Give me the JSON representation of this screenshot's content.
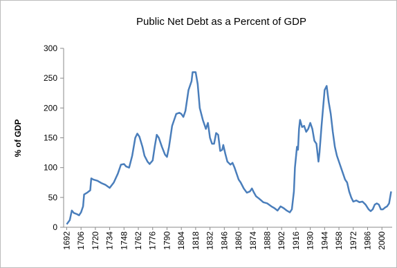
{
  "chart_data": {
    "type": "line",
    "title": "Public Net Debt as a Percent of GDP",
    "y_label": "% of GDP",
    "x": [
      1692,
      1695,
      1697,
      1699,
      1702,
      1704,
      1706,
      1708,
      1709,
      1712,
      1715,
      1716,
      1718,
      1722,
      1726,
      1730,
      1734,
      1738,
      1742,
      1745,
      1748,
      1750,
      1753,
      1756,
      1759,
      1761,
      1763,
      1766,
      1768,
      1771,
      1773,
      1776,
      1778,
      1780,
      1782,
      1785,
      1788,
      1790,
      1792,
      1795,
      1797,
      1799,
      1802,
      1804,
      1806,
      1808,
      1811,
      1814,
      1815,
      1818,
      1820,
      1822,
      1825,
      1828,
      1830,
      1832,
      1834,
      1836,
      1838,
      1840,
      1842,
      1844,
      1845,
      1847,
      1849,
      1852,
      1854,
      1856,
      1858,
      1860,
      1862,
      1865,
      1868,
      1871,
      1873,
      1875,
      1877,
      1880,
      1884,
      1888,
      1892,
      1895,
      1898,
      1901,
      1904,
      1907,
      1910,
      1912,
      1914,
      1915,
      1917,
      1918,
      1919,
      1920,
      1922,
      1924,
      1926,
      1928,
      1930,
      1932,
      1934,
      1936,
      1938,
      1939,
      1941,
      1944,
      1946,
      1948,
      1950,
      1952,
      1954,
      1956,
      1959,
      1962,
      1964,
      1966,
      1968,
      1970,
      1972,
      1975,
      1978,
      1981,
      1984,
      1987,
      1989,
      1991,
      1993,
      1995,
      1997,
      1999,
      2001,
      2003,
      2005,
      2007,
      2009
    ],
    "series": [
      {
        "name": "Public Net Debt",
        "color": "#4a7ebb",
        "values": [
          5,
          12,
          28,
          24,
          22,
          20,
          25,
          35,
          55,
          58,
          62,
          82,
          80,
          78,
          74,
          71,
          66,
          75,
          90,
          105,
          106,
          102,
          100,
          120,
          150,
          157,
          152,
          135,
          120,
          110,
          106,
          112,
          135,
          155,
          150,
          135,
          122,
          118,
          135,
          170,
          180,
          190,
          192,
          190,
          185,
          195,
          230,
          245,
          260,
          260,
          240,
          200,
          180,
          165,
          175,
          150,
          140,
          140,
          158,
          155,
          128,
          130,
          138,
          123,
          110,
          105,
          108,
          100,
          90,
          80,
          75,
          65,
          58,
          60,
          65,
          58,
          52,
          48,
          42,
          40,
          35,
          32,
          28,
          35,
          32,
          28,
          25,
          30,
          60,
          100,
          135,
          130,
          165,
          180,
          168,
          170,
          160,
          165,
          175,
          165,
          145,
          140,
          110,
          125,
          170,
          230,
          237,
          210,
          190,
          160,
          135,
          120,
          105,
          90,
          80,
          75,
          60,
          50,
          43,
          45,
          42,
          43,
          38,
          30,
          27,
          30,
          38,
          40,
          38,
          30,
          30,
          33,
          35,
          40,
          60
        ]
      }
    ],
    "xlim": [
      1689,
      2010
    ],
    "xticks": [
      1692,
      1706,
      1720,
      1734,
      1748,
      1762,
      1776,
      1790,
      1804,
      1818,
      1832,
      1846,
      1860,
      1874,
      1888,
      1902,
      1916,
      1930,
      1944,
      1958,
      1972,
      1986,
      2000
    ],
    "ylim": [
      0,
      300
    ],
    "yticks": [
      0,
      50,
      100,
      150,
      200,
      250,
      300
    ],
    "grid": false
  }
}
